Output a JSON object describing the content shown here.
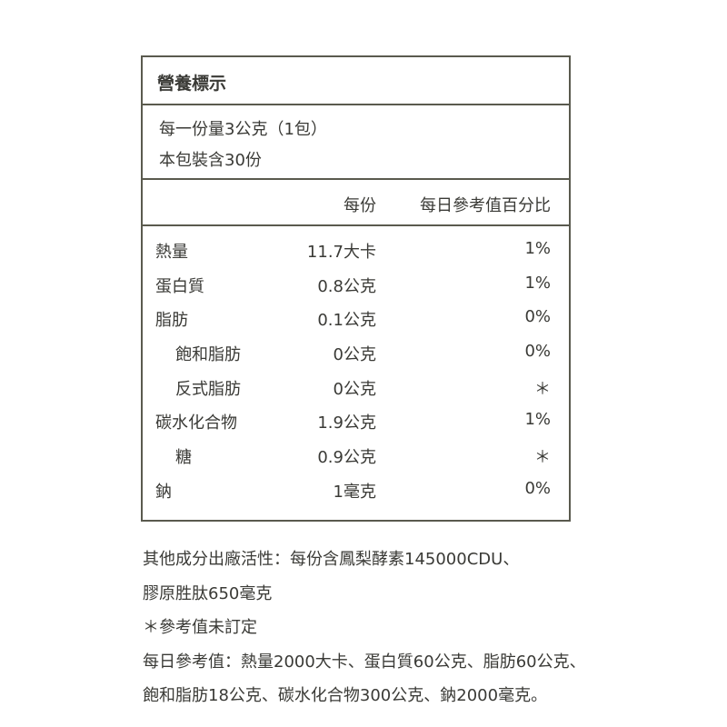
{
  "label": {
    "title": "營養標示",
    "serving_size": "每一份量3公克（1包）",
    "servings_per_package": "本包裝含30份",
    "col_per_serving": "每份",
    "col_daily_pct": "每日參考值百分比",
    "rows": [
      {
        "name": "熱量",
        "value": "11.7大卡",
        "pct": "1%",
        "sub": false
      },
      {
        "name": "蛋白質",
        "value": "0.8公克",
        "pct": "1%",
        "sub": false
      },
      {
        "name": "脂肪",
        "value": "0.1公克",
        "pct": "0%",
        "sub": false
      },
      {
        "name": "飽和脂肪",
        "value": "0公克",
        "pct": "0%",
        "sub": true
      },
      {
        "name": "反式脂肪",
        "value": "0公克",
        "pct": "＊",
        "sub": true
      },
      {
        "name": "碳水化合物",
        "value": "1.9公克",
        "pct": "1%",
        "sub": false
      },
      {
        "name": "糖",
        "value": "0.9公克",
        "pct": "＊",
        "sub": true
      },
      {
        "name": "鈉",
        "value": "1毫克",
        "pct": "0%",
        "sub": false
      }
    ]
  },
  "notes": [
    "其他成分出廠活性：每份含鳳梨酵素145000CDU、",
    "膠原胜肽650毫克",
    "＊參考值未訂定",
    "每日參考值：熱量2000大卡、蛋白質60公克、脂肪60公克、",
    "飽和脂肪18公克、碳水化合物300公克、鈉2000毫克。"
  ]
}
